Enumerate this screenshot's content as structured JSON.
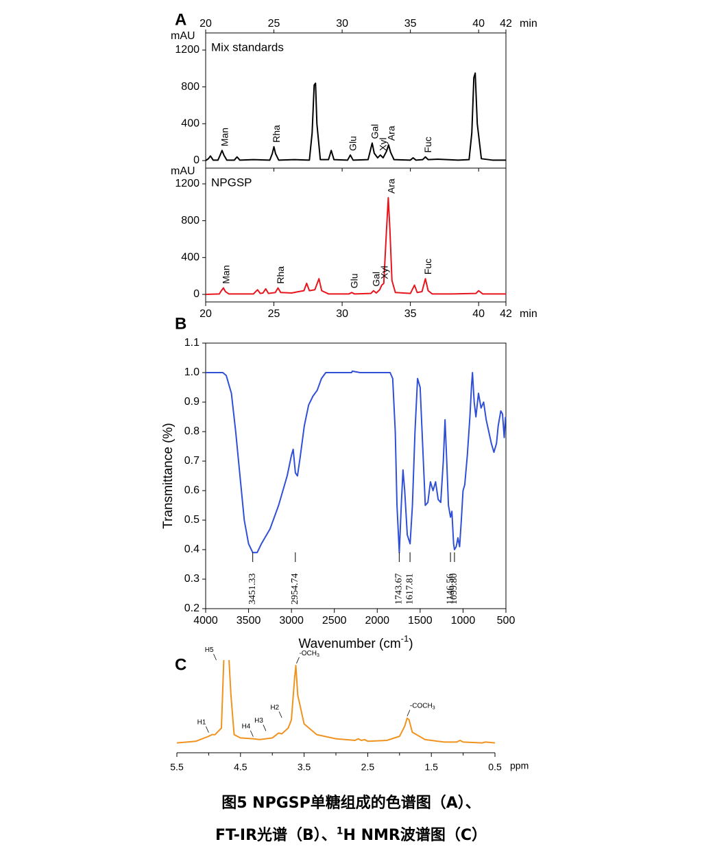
{
  "chart_data": [
    {
      "type": "line",
      "panel": "A",
      "y_unit": "mAU",
      "x_unit": "min",
      "xaxis_position": "top",
      "xlim": [
        20,
        42
      ],
      "xticks": [
        20,
        25,
        30,
        35,
        40,
        42
      ],
      "ylim": [
        -82,
        1386
      ],
      "yticks": [
        0,
        400,
        800,
        1200
      ],
      "series": [
        {
          "name": "Mix standards",
          "color": "#000000",
          "x": [
            20.0,
            20.2,
            20.35,
            20.55,
            20.9,
            21.05,
            21.2,
            21.35,
            21.55,
            22.1,
            22.3,
            22.5,
            23.5,
            24.7,
            24.88,
            25.0,
            25.12,
            25.35,
            26.5,
            27.6,
            27.8,
            27.95,
            28.05,
            28.15,
            28.4,
            29.0,
            29.2,
            29.4,
            30.4,
            30.6,
            30.8,
            31.9,
            32.05,
            32.2,
            32.35,
            32.6,
            32.8,
            33.0,
            33.25,
            33.4,
            33.55,
            33.8,
            35.0,
            35.2,
            35.4,
            35.9,
            36.1,
            36.3,
            37.0,
            38.5,
            39.3,
            39.5,
            39.65,
            39.75,
            39.9,
            40.2,
            41.0,
            42.0
          ],
          "values": [
            0,
            20,
            50,
            5,
            5,
            55,
            110,
            55,
            5,
            5,
            40,
            5,
            10,
            5,
            75,
            150,
            75,
            5,
            10,
            5,
            300,
            820,
            840,
            400,
            10,
            10,
            110,
            10,
            5,
            60,
            5,
            10,
            100,
            190,
            80,
            30,
            60,
            30,
            100,
            170,
            90,
            10,
            5,
            30,
            5,
            10,
            40,
            10,
            15,
            5,
            10,
            300,
            900,
            950,
            400,
            20,
            5,
            5
          ]
        }
      ],
      "annotations": [
        {
          "text": "Man",
          "x": 21.2
        },
        {
          "text": "Rha",
          "x": 25.0
        },
        {
          "text": "Glu",
          "x": 30.6
        },
        {
          "text": "Gal",
          "x": 32.2
        },
        {
          "text": "Xyl",
          "x": 32.8
        },
        {
          "text": "Ara",
          "x": 33.4
        },
        {
          "text": "Fuc",
          "x": 36.1
        }
      ]
    },
    {
      "type": "line",
      "y_unit": "mAU",
      "x_unit": "min",
      "xaxis_position": "bottom",
      "xlim": [
        20,
        42
      ],
      "xticks": [
        20,
        25,
        30,
        35,
        40,
        42
      ],
      "ylim": [
        -82,
        1371
      ],
      "yticks": [
        0,
        400,
        800,
        1200
      ],
      "series": [
        {
          "name": "NPGSP",
          "color": "#e8141b",
          "x": [
            20.0,
            21.0,
            21.15,
            21.3,
            21.45,
            21.7,
            23.5,
            23.8,
            24.0,
            24.2,
            24.4,
            24.6,
            25.1,
            25.3,
            25.5,
            26.3,
            26.8,
            27.2,
            27.4,
            27.6,
            28.0,
            28.3,
            28.5,
            29.0,
            30.5,
            30.7,
            30.9,
            32.1,
            32.3,
            32.5,
            32.75,
            32.9,
            33.05,
            33.25,
            33.38,
            33.5,
            33.65,
            33.9,
            35.0,
            35.3,
            35.5,
            35.85,
            36.1,
            36.3,
            36.6,
            38.0,
            39.8,
            40.0,
            40.3,
            42.0
          ],
          "values": [
            0,
            5,
            40,
            70,
            30,
            5,
            5,
            50,
            10,
            15,
            60,
            10,
            20,
            70,
            20,
            15,
            30,
            40,
            120,
            40,
            50,
            170,
            40,
            5,
            5,
            20,
            5,
            10,
            40,
            15,
            50,
            100,
            120,
            700,
            1050,
            700,
            150,
            20,
            10,
            100,
            20,
            30,
            170,
            40,
            5,
            5,
            10,
            40,
            5,
            5
          ]
        }
      ],
      "annotations": [
        {
          "text": "Man",
          "x": 21.3
        },
        {
          "text": "Rha",
          "x": 25.3
        },
        {
          "text": "Glu",
          "x": 30.7
        },
        {
          "text": "Gal",
          "x": 32.3
        },
        {
          "text": "Xyl",
          "x": 32.9
        },
        {
          "text": "Ara",
          "x": 33.4
        },
        {
          "text": "Fuc",
          "x": 36.1
        }
      ]
    },
    {
      "type": "line",
      "panel": "B",
      "x_label": "Wavenumber (cm",
      "x_label_sup": "-1",
      "x_label_end": ")",
      "y_label": "Transmittance (%)",
      "xlim": [
        4000,
        500
      ],
      "xticks": [
        4000,
        3500,
        3000,
        2500,
        2000,
        1500,
        1000,
        500
      ],
      "ylim": [
        0.2,
        1.1
      ],
      "yticks": [
        0.2,
        0.3,
        0.4,
        0.5,
        0.6,
        0.7,
        0.8,
        0.9,
        {
          "value": 1,
          "label": "1.0"
        },
        1.1
      ],
      "series": [
        {
          "color": "#2f4fd6",
          "x": [
            4000,
            3800,
            3760,
            3700,
            3650,
            3600,
            3550,
            3500,
            3451,
            3400,
            3350,
            3250,
            3150,
            3050,
            3000,
            2980,
            2954,
            2930,
            2900,
            2850,
            2800,
            2750,
            2700,
            2650,
            2600,
            2300,
            2290,
            2200,
            1850,
            1820,
            1790,
            1770,
            1743,
            1720,
            1700,
            1680,
            1650,
            1617,
            1590,
            1560,
            1530,
            1500,
            1470,
            1440,
            1410,
            1380,
            1350,
            1320,
            1290,
            1260,
            1230,
            1210,
            1190,
            1170,
            1146,
            1130,
            1110,
            1100,
            1080,
            1060,
            1040,
            1020,
            1000,
            980,
            950,
            920,
            900,
            890,
            870,
            850,
            820,
            790,
            760,
            730,
            700,
            670,
            640,
            610,
            590,
            560,
            540,
            520,
            505
          ],
          "values": [
            1.0,
            1.0,
            0.99,
            0.93,
            0.8,
            0.65,
            0.5,
            0.42,
            0.39,
            0.39,
            0.42,
            0.47,
            0.55,
            0.65,
            0.72,
            0.74,
            0.66,
            0.65,
            0.71,
            0.82,
            0.89,
            0.92,
            0.94,
            0.98,
            1.0,
            1.0,
            1.005,
            1.0,
            1.0,
            0.98,
            0.8,
            0.55,
            0.39,
            0.55,
            0.67,
            0.6,
            0.45,
            0.42,
            0.55,
            0.8,
            0.98,
            0.95,
            0.75,
            0.55,
            0.56,
            0.63,
            0.6,
            0.63,
            0.57,
            0.56,
            0.7,
            0.84,
            0.7,
            0.55,
            0.51,
            0.53,
            0.42,
            0.4,
            0.41,
            0.44,
            0.41,
            0.5,
            0.6,
            0.62,
            0.72,
            0.85,
            0.96,
            1.0,
            0.9,
            0.85,
            0.93,
            0.88,
            0.9,
            0.84,
            0.8,
            0.76,
            0.73,
            0.76,
            0.82,
            0.87,
            0.86,
            0.78,
            0.85
          ]
        }
      ],
      "annotations": [
        {
          "text": "3451.33",
          "x": 3451.33
        },
        {
          "text": "2954.74",
          "x": 2954.74
        },
        {
          "text": "1743.67",
          "x": 1743.67
        },
        {
          "text": "1617.81",
          "x": 1617.81
        },
        {
          "text": "1146.56",
          "x": 1146.56
        },
        {
          "text": "1099.80",
          "x": 1099.8
        }
      ]
    },
    {
      "type": "line",
      "panel": "C",
      "x_unit": "ppm",
      "xlim": [
        5.5,
        0.5
      ],
      "xticks": [
        5.5,
        4.5,
        3.5,
        2.5,
        1.5,
        0.5
      ],
      "minor_xticks": [
        5,
        4,
        3,
        2,
        1
      ],
      "ylim": [
        0,
        100
      ],
      "series": [
        {
          "color": "#f0921e",
          "x": [
            5.5,
            5.2,
            5.0,
            4.95,
            4.9,
            4.8,
            4.75,
            4.7,
            4.65,
            4.6,
            4.5,
            4.3,
            4.2,
            4.0,
            3.9,
            3.85,
            3.75,
            3.7,
            3.65,
            3.63,
            3.6,
            3.5,
            3.3,
            3.0,
            2.7,
            2.65,
            2.6,
            2.55,
            2.5,
            2.2,
            2.0,
            1.92,
            1.88,
            1.85,
            1.8,
            1.6,
            1.3,
            1.1,
            1.05,
            1.0,
            0.7,
            0.65,
            0.5
          ],
          "values": [
            2,
            4,
            10,
            12,
            12,
            20,
            130,
            130,
            60,
            12,
            8,
            7,
            6,
            8,
            14,
            13,
            20,
            30,
            80,
            96,
            60,
            25,
            12,
            7,
            5,
            7,
            5,
            6,
            4,
            5,
            10,
            22,
            32,
            30,
            15,
            6,
            3,
            3,
            5,
            3,
            2,
            3,
            2
          ]
        }
      ],
      "annotations": [
        {
          "text": "H1",
          "x": 5.0
        },
        {
          "text": "H5",
          "x": 4.88
        },
        {
          "text": "H4",
          "x": 4.3
        },
        {
          "text": "H3",
          "x": 4.1
        },
        {
          "text": "H2",
          "x": 3.85
        },
        {
          "text": "-OCH",
          "sub": "3",
          "x": 3.62
        },
        {
          "text": "-COCH",
          "sub": "3",
          "x": 1.88
        }
      ]
    }
  ],
  "caption": {
    "line1": "图5 NPGSP单糖组成的色谱图（A）、",
    "line2": "FT-IR光谱（B）、",
    "line2_sup": "1",
    "line2_end": "H NMR波谱图（C）"
  }
}
